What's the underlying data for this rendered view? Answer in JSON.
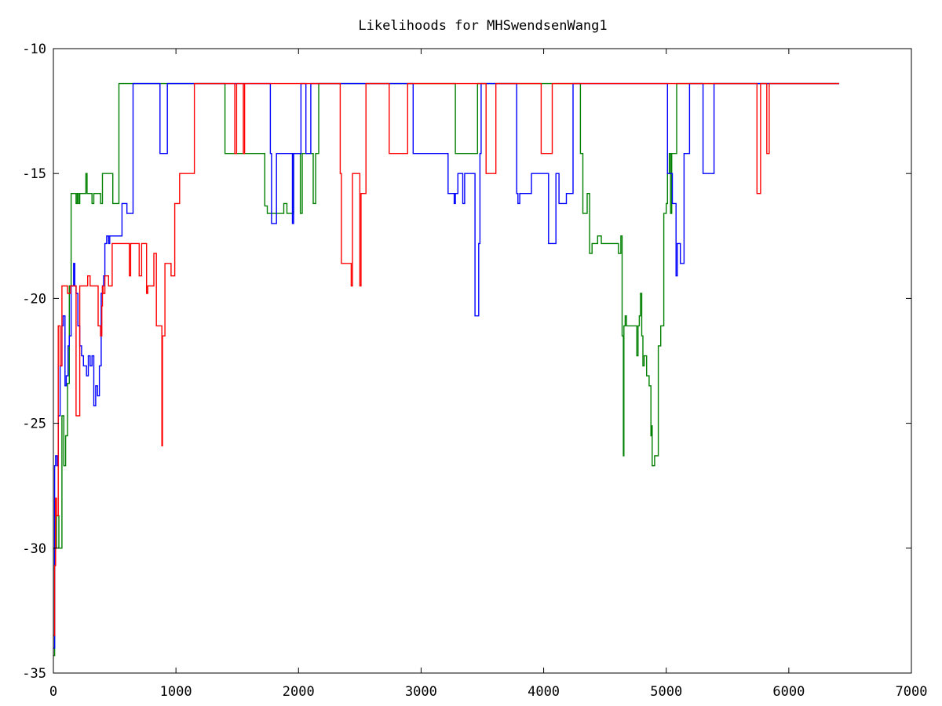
{
  "chart_data": {
    "type": "line",
    "title": "Likelihoods for MHSwendsenWang1",
    "xlabel": "",
    "ylabel": "",
    "xlim": [
      0,
      7000
    ],
    "ylim": [
      -35,
      -10
    ],
    "xticks": [
      0,
      1000,
      2000,
      3000,
      4000,
      5000,
      6000,
      7000
    ],
    "yticks": [
      -35,
      -30,
      -25,
      -20,
      -15,
      -10
    ],
    "xtick_labels": [
      "0",
      "1000",
      "2000",
      "3000",
      "4000",
      "5000",
      "6000",
      "7000"
    ],
    "ytick_labels": [
      "-35",
      "-30",
      "-25",
      "-20",
      "-15",
      "-10"
    ],
    "grid": false,
    "legend": false,
    "series": [
      {
        "color": "#008000",
        "step": true,
        "x": [
          0,
          10,
          25,
          45,
          70,
          85,
          100,
          115,
          130,
          145,
          185,
          195,
          205,
          215,
          230,
          265,
          275,
          285,
          315,
          330,
          385,
          400,
          460,
          470,
          475,
          480,
          485,
          505,
          535,
          545,
          1400,
          1725,
          1745,
          1880,
          1905,
          1960,
          1975,
          2015,
          2030,
          2120,
          2140,
          2165,
          3280,
          3430,
          3440,
          3460,
          3470,
          4300,
          4320,
          4355,
          4375,
          4395,
          4420,
          4440,
          4470,
          4490,
          4610,
          4630,
          4640,
          4650,
          4655,
          4665,
          4675,
          4760,
          4770,
          4780,
          4790,
          4800,
          4810,
          4820,
          4840,
          4860,
          4875,
          4880,
          4885,
          4895,
          4905,
          4935,
          4955,
          4980,
          5000,
          5010,
          5025,
          5035,
          5045,
          5050,
          5060,
          5075,
          5085,
          5095,
          5115,
          5150,
          6410
        ],
        "y": [
          -34.3,
          -30.0,
          -28.7,
          -30.0,
          -24.7,
          -26.7,
          -25.5,
          -23.4,
          -19.5,
          -15.8,
          -16.2,
          -15.8,
          -16.2,
          -15.8,
          -15.8,
          -15.0,
          -15.8,
          -15.8,
          -16.2,
          -15.8,
          -16.2,
          -15.0,
          -15.0,
          -15.0,
          -15.0,
          -15.0,
          -16.2,
          -16.2,
          -11.4,
          -11.4,
          -14.2,
          -16.3,
          -16.6,
          -16.2,
          -16.6,
          -14.2,
          -14.2,
          -16.6,
          -14.2,
          -16.2,
          -14.2,
          -11.4,
          -14.2,
          -14.2,
          -14.2,
          -11.4,
          -11.4,
          -14.2,
          -16.6,
          -15.8,
          -18.2,
          -17.8,
          -17.8,
          -17.5,
          -17.8,
          -17.8,
          -18.2,
          -17.5,
          -21.5,
          -26.3,
          -21.1,
          -20.7,
          -21.1,
          -22.3,
          -21.1,
          -20.7,
          -19.8,
          -21.5,
          -22.7,
          -22.3,
          -23.1,
          -23.5,
          -25.5,
          -25.1,
          -26.7,
          -26.7,
          -26.3,
          -21.9,
          -21.1,
          -16.6,
          -16.2,
          -15.0,
          -14.2,
          -16.6,
          -14.2,
          -14.2,
          -14.2,
          -14.2,
          -11.4,
          -11.4,
          -11.4,
          -11.4,
          -11.4
        ]
      },
      {
        "color": "#0000ff",
        "step": true,
        "x": [
          0,
          10,
          18,
          30,
          40,
          55,
          70,
          80,
          95,
          105,
          120,
          130,
          145,
          165,
          175,
          185,
          200,
          215,
          230,
          245,
          270,
          285,
          300,
          315,
          330,
          345,
          360,
          375,
          390,
          400,
          410,
          420,
          435,
          450,
          460,
          470,
          495,
          560,
          600,
          635,
          650,
          870,
          910,
          930,
          1470,
          1480,
          1770,
          1780,
          1800,
          1820,
          1940,
          1950,
          1960,
          1975,
          2020,
          2040,
          2060,
          2080,
          2100,
          2150,
          2165,
          2920,
          2935,
          3210,
          3220,
          3270,
          3280,
          3300,
          3340,
          3355,
          3375,
          3440,
          3470,
          3480,
          3490,
          3500,
          3780,
          3790,
          3805,
          3830,
          3900,
          3955,
          4040,
          4065,
          4100,
          4125,
          4165,
          4185,
          4210,
          4240,
          4250,
          4260,
          5000,
          5010,
          5030,
          5050,
          5080,
          5090,
          5100,
          5115,
          5145,
          5160,
          5190,
          5210,
          5300,
          5370,
          5390,
          6410
        ],
        "y": [
          -34.0,
          -26.7,
          -26.3,
          -26.7,
          -24.7,
          -22.7,
          -21.1,
          -20.7,
          -23.5,
          -23.1,
          -21.9,
          -21.5,
          -19.5,
          -18.6,
          -19.5,
          -19.8,
          -21.1,
          -21.9,
          -22.3,
          -22.7,
          -23.1,
          -22.3,
          -22.7,
          -22.3,
          -24.3,
          -23.5,
          -23.9,
          -22.7,
          -19.8,
          -19.5,
          -19.1,
          -17.8,
          -17.5,
          -17.8,
          -17.5,
          -17.5,
          -17.5,
          -16.2,
          -16.6,
          -16.6,
          -11.4,
          -14.2,
          -14.2,
          -11.4,
          -11.4,
          -11.4,
          -14.2,
          -17.0,
          -17.0,
          -14.2,
          -14.2,
          -17.0,
          -14.2,
          -14.2,
          -11.4,
          -11.4,
          -14.2,
          -14.2,
          -11.4,
          -11.4,
          -11.4,
          -11.4,
          -14.2,
          -14.2,
          -15.8,
          -16.2,
          -15.8,
          -15.0,
          -16.2,
          -15.0,
          -15.0,
          -20.7,
          -17.8,
          -14.2,
          -11.4,
          -11.4,
          -15.8,
          -16.2,
          -15.8,
          -15.8,
          -15.0,
          -15.0,
          -17.8,
          -17.8,
          -15.0,
          -16.2,
          -16.2,
          -15.8,
          -15.8,
          -11.4,
          -11.4,
          -11.4,
          -11.4,
          -15.0,
          -15.0,
          -16.2,
          -19.1,
          -17.8,
          -17.8,
          -18.6,
          -14.2,
          -14.2,
          -11.4,
          -11.4,
          -15.0,
          -15.0,
          -11.4,
          -11.4
        ]
      },
      {
        "color": "#ff0000",
        "step": true,
        "x": [
          0,
          5,
          10,
          18,
          25,
          40,
          55,
          70,
          85,
          100,
          115,
          140,
          160,
          185,
          200,
          215,
          230,
          280,
          300,
          320,
          365,
          385,
          395,
          400,
          405,
          420,
          450,
          480,
          520,
          540,
          620,
          630,
          635,
          700,
          720,
          735,
          760,
          770,
          780,
          800,
          820,
          840,
          880,
          885,
          890,
          895,
          910,
          940,
          960,
          990,
          1000,
          1030,
          1100,
          1150,
          1380,
          1400,
          1480,
          1495,
          1550,
          1560,
          2340,
          2350,
          2410,
          2430,
          2440,
          2460,
          2500,
          2510,
          2550,
          2560,
          2740,
          2760,
          2890,
          3400,
          3410,
          3530,
          3560,
          3610,
          3630,
          3660,
          3980,
          4000,
          4070,
          4090,
          4320,
          4340,
          5740,
          5770,
          5790,
          5820,
          5840,
          6410
        ],
        "y": [
          -33.5,
          -33.5,
          -30.7,
          -28.0,
          -28.7,
          -21.1,
          -22.7,
          -19.5,
          -19.5,
          -19.5,
          -19.8,
          -19.5,
          -19.5,
          -24.7,
          -24.7,
          -19.5,
          -19.5,
          -19.1,
          -19.5,
          -19.5,
          -21.1,
          -21.5,
          -20.3,
          -19.5,
          -19.8,
          -19.1,
          -19.5,
          -17.8,
          -17.8,
          -17.8,
          -19.1,
          -17.8,
          -17.8,
          -19.1,
          -17.8,
          -17.8,
          -19.8,
          -19.5,
          -19.5,
          -19.5,
          -18.2,
          -21.1,
          -21.1,
          -25.9,
          -21.5,
          -21.5,
          -18.6,
          -18.6,
          -19.1,
          -16.2,
          -16.2,
          -15.0,
          -15.0,
          -11.4,
          -11.4,
          -11.4,
          -14.2,
          -11.4,
          -14.2,
          -11.4,
          -15.0,
          -18.6,
          -18.6,
          -19.5,
          -15.0,
          -15.0,
          -19.5,
          -15.8,
          -11.4,
          -11.4,
          -14.2,
          -14.2,
          -11.4,
          -11.4,
          -11.4,
          -15.0,
          -15.0,
          -11.4,
          -11.4,
          -11.4,
          -14.2,
          -14.2,
          -11.4,
          -11.4,
          -11.4,
          -11.4,
          -15.8,
          -11.4,
          -11.4,
          -14.2,
          -11.4,
          -11.4
        ]
      }
    ]
  }
}
